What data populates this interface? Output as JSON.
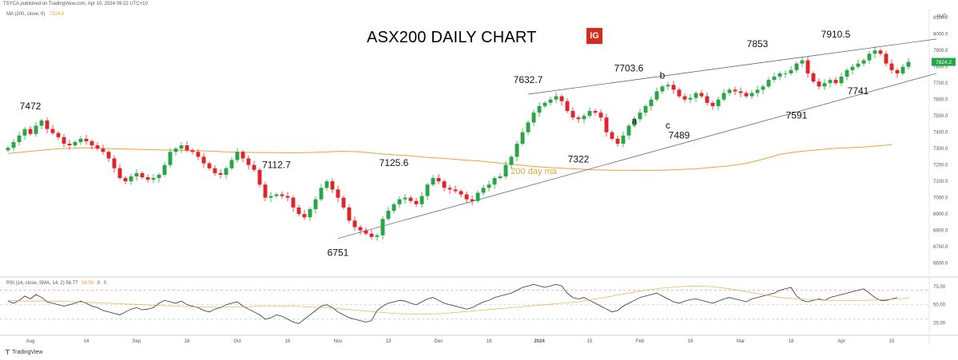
{
  "header": {
    "published_line": "TSYCA published on TradingView.com, Apr 10, 2024 09:22 UTC+10",
    "ma_indicator_label": "MA (200, close, 0)",
    "ma_indicator_value": "7324.8",
    "rsi_indicator_label": "RSI (14, close, SMA, 14, 2)",
    "rsi_value": "56.77",
    "rsi_ma_value": "58.58",
    "rsi_extra": "0",
    "rsi_extra2": "0"
  },
  "branding": {
    "logo_text": "IG",
    "logo_color": "#d52b1e",
    "footer": "TradingView"
  },
  "chart_data": {
    "type": "candlestick",
    "title": "ASX200 DAILY CHART",
    "currency": "AUD",
    "last_price_label": "7824.2",
    "ylim": [
      6520,
      8150
    ],
    "y_ticks": [
      "8100.0",
      "8000.0",
      "7900.0",
      "7800.0",
      "7700.0",
      "7600.0",
      "7500.0",
      "7400.0",
      "7300.0",
      "7200.0",
      "7100.0",
      "7000.0",
      "6900.0",
      "6800.0",
      "6700.0",
      "6600.0"
    ],
    "y_tick_values": [
      8100,
      8000,
      7900,
      7800,
      7700,
      7600,
      7500,
      7400,
      7300,
      7200,
      7100,
      7000,
      6900,
      6800,
      6700,
      6600
    ],
    "x_ticks": [
      "Aug",
      "14",
      "Sep",
      "18",
      "Oct",
      "16",
      "Nov",
      "13",
      "Dec",
      "18",
      "2024",
      "15",
      "Feb",
      "19",
      "Mar",
      "18",
      "Apr",
      "15"
    ],
    "x_tick_index": [
      4,
      14,
      23,
      32,
      41,
      50,
      59,
      68,
      77,
      86,
      95,
      104,
      113,
      122,
      131,
      140,
      149,
      158
    ],
    "series_colors": {
      "up": "#26a645",
      "down": "#e0242a",
      "ma": "#e8a43a",
      "trendline": "#555555"
    },
    "ma_label": "200 day ma",
    "annotations": [
      {
        "text": "7472",
        "i": 4,
        "v": 7472,
        "pos": "above"
      },
      {
        "text": "7112.7",
        "i": 48,
        "v": 7112.7,
        "pos": "above"
      },
      {
        "text": "6751",
        "i": 59,
        "v": 6751,
        "pos": "below"
      },
      {
        "text": "7125.6",
        "i": 69,
        "v": 7125.6,
        "pos": "above"
      },
      {
        "text": "7632.7",
        "i": 93,
        "v": 7632.7,
        "pos": "above"
      },
      {
        "text": "7322",
        "i": 102,
        "v": 7322,
        "pos": "below"
      },
      {
        "text": "7703.6",
        "i": 111,
        "v": 7703.6,
        "pos": "above"
      },
      {
        "text": "a",
        "i": 112,
        "v": 7560,
        "pos": "below"
      },
      {
        "text": "b",
        "i": 117,
        "v": 7660,
        "pos": "above"
      },
      {
        "text": "c",
        "i": 118,
        "v": 7530,
        "pos": "below"
      },
      {
        "text": "7489",
        "i": 120,
        "v": 7470,
        "pos": "below"
      },
      {
        "text": "7853",
        "i": 134,
        "v": 7853,
        "pos": "above"
      },
      {
        "text": "7591",
        "i": 141,
        "v": 7591,
        "pos": "below"
      },
      {
        "text": "7910.5",
        "i": 148,
        "v": 7910.5,
        "pos": "above"
      },
      {
        "text": "7741",
        "i": 152,
        "v": 7741,
        "pos": "below"
      }
    ],
    "closes": [
      7305,
      7340,
      7380,
      7420,
      7390,
      7440,
      7472,
      7420,
      7395,
      7370,
      7330,
      7320,
      7340,
      7360,
      7345,
      7320,
      7300,
      7280,
      7240,
      7180,
      7120,
      7100,
      7130,
      7150,
      7125,
      7110,
      7120,
      7140,
      7200,
      7280,
      7300,
      7320,
      7290,
      7280,
      7250,
      7210,
      7180,
      7150,
      7140,
      7180,
      7230,
      7280,
      7240,
      7200,
      7170,
      7080,
      7000,
      7010,
      7020,
      7010,
      7000,
      6940,
      6900,
      6880,
      6930,
      6990,
      7060,
      7100,
      7050,
      7000,
      6940,
      6860,
      6820,
      6800,
      6780,
      6760,
      6770,
      6870,
      6920,
      6960,
      6990,
      7000,
      6980,
      6960,
      7010,
      7080,
      7120,
      7100,
      7060,
      7050,
      7040,
      7020,
      6990,
      6980,
      7030,
      7060,
      7080,
      7120,
      7130,
      7200,
      7250,
      7330,
      7400,
      7460,
      7520,
      7560,
      7580,
      7600,
      7620,
      7590,
      7530,
      7490,
      7480,
      7500,
      7530,
      7520,
      7490,
      7400,
      7360,
      7330,
      7380,
      7440,
      7480,
      7520,
      7560,
      7600,
      7650,
      7680,
      7690,
      7660,
      7620,
      7600,
      7610,
      7640,
      7620,
      7580,
      7560,
      7600,
      7640,
      7660,
      7650,
      7640,
      7620,
      7640,
      7660,
      7680,
      7720,
      7740,
      7760,
      7760,
      7780,
      7820,
      7840,
      7760,
      7710,
      7680,
      7700,
      7720,
      7700,
      7740,
      7780,
      7800,
      7820,
      7840,
      7880,
      7900,
      7880,
      7820,
      7780,
      7760,
      7800,
      7830
    ],
    "ma_values": [
      7270,
      7280,
      7290,
      7300,
      7303,
      7305,
      7300,
      7298,
      7295,
      7292,
      7290,
      7288,
      7285,
      7280,
      7278,
      7276,
      7275,
      7274,
      7276,
      7280,
      7284,
      7280,
      7270,
      7262,
      7256,
      7246,
      7240,
      7232,
      7225,
      7215,
      7205,
      7194,
      7186,
      7180,
      7175,
      7170,
      7168,
      7167,
      7166,
      7168,
      7172,
      7176,
      7186,
      7195,
      7210,
      7235,
      7265,
      7280,
      7290,
      7300,
      7305,
      7310,
      7318,
      7324
    ],
    "ma_index": [
      0,
      3,
      6,
      9,
      12,
      15,
      18,
      21,
      24,
      27,
      30,
      33,
      36,
      39,
      42,
      45,
      48,
      51,
      54,
      57,
      60,
      63,
      66,
      69,
      72,
      75,
      78,
      81,
      84,
      87,
      90,
      93,
      96,
      99,
      102,
      105,
      108,
      111,
      114,
      117,
      120,
      123,
      126,
      129,
      132,
      135,
      138,
      141,
      144,
      147,
      150,
      153,
      156,
      158
    ],
    "trendlines": [
      {
        "i1": 59,
        "v1": 6751,
        "i2": 166,
        "v2": 7760
      },
      {
        "i1": 93,
        "v1": 7632.7,
        "i2": 166,
        "v2": 7970
      }
    ],
    "rsi": {
      "ylim": [
        10,
        85
      ],
      "y_ticks": [
        "75.00",
        "50.00",
        "25.00"
      ],
      "y_tick_values": [
        75,
        50,
        25
      ],
      "levels": [
        70,
        50,
        30
      ],
      "values": [
        55,
        52,
        56,
        62,
        58,
        64,
        60,
        54,
        52,
        50,
        48,
        50,
        52,
        55,
        52,
        48,
        46,
        42,
        40,
        38,
        36,
        40,
        44,
        46,
        43,
        44,
        46,
        52,
        56,
        54,
        52,
        55,
        50,
        48,
        46,
        42,
        40,
        44,
        46,
        50,
        52,
        54,
        48,
        44,
        40,
        36,
        30,
        32,
        36,
        34,
        30,
        26,
        24,
        30,
        36,
        42,
        48,
        50,
        46,
        40,
        36,
        32,
        30,
        28,
        26,
        28,
        42,
        48,
        52,
        54,
        56,
        55,
        52,
        50,
        54,
        58,
        60,
        56,
        52,
        50,
        48,
        46,
        44,
        46,
        50,
        54,
        56,
        60,
        62,
        64,
        66,
        70,
        74,
        76,
        78,
        76,
        74,
        76,
        78,
        76,
        66,
        60,
        58,
        60,
        56,
        52,
        48,
        44,
        40,
        42,
        48,
        52,
        56,
        60,
        62,
        64,
        66,
        62,
        58,
        54,
        52,
        55,
        57,
        58,
        56,
        54,
        52,
        55,
        58,
        60,
        58,
        56,
        54,
        58,
        60,
        62,
        64,
        66,
        70,
        72,
        74,
        62,
        56,
        54,
        56,
        58,
        56,
        60,
        62,
        64,
        66,
        68,
        70,
        72,
        66,
        60,
        56,
        56,
        58,
        60
      ],
      "ma": [
        56,
        55,
        55,
        55,
        54,
        53,
        52,
        51,
        50,
        49,
        48,
        47,
        47,
        47,
        47,
        48,
        48,
        48,
        47,
        46,
        44,
        42,
        40,
        38,
        37,
        37,
        38,
        40,
        42,
        44,
        46,
        48,
        50,
        52,
        54,
        58,
        62,
        66,
        70,
        73,
        75,
        76,
        75,
        72,
        68,
        64,
        60,
        58,
        57,
        56,
        56,
        56,
        57,
        58,
        59,
        60,
        60,
        61,
        61,
        61
      ],
      "ma_step": 3
    }
  }
}
